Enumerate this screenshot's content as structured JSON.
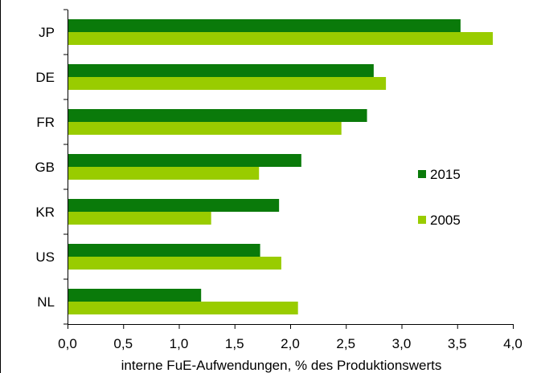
{
  "chart_data": {
    "type": "bar",
    "orientation": "horizontal",
    "categories": [
      "JP",
      "DE",
      "FR",
      "GB",
      "KR",
      "US",
      "NL"
    ],
    "series": [
      {
        "name": "2015",
        "color": "#0a7a0a",
        "values": [
          3.53,
          2.75,
          2.69,
          2.1,
          1.9,
          1.73,
          1.2
        ]
      },
      {
        "name": "2005",
        "color": "#99cc00",
        "values": [
          3.82,
          2.86,
          2.46,
          1.72,
          1.29,
          1.92,
          2.07
        ]
      }
    ],
    "xlabel": "interne FuE-Aufwendungen, % des Produktionswerts",
    "xlim": [
      0,
      4.0
    ],
    "xticks": [
      "0,0",
      "0,5",
      "1,0",
      "1,5",
      "2,0",
      "2,5",
      "3,0",
      "3,5",
      "4,0"
    ],
    "grid": false,
    "legend": "right"
  }
}
